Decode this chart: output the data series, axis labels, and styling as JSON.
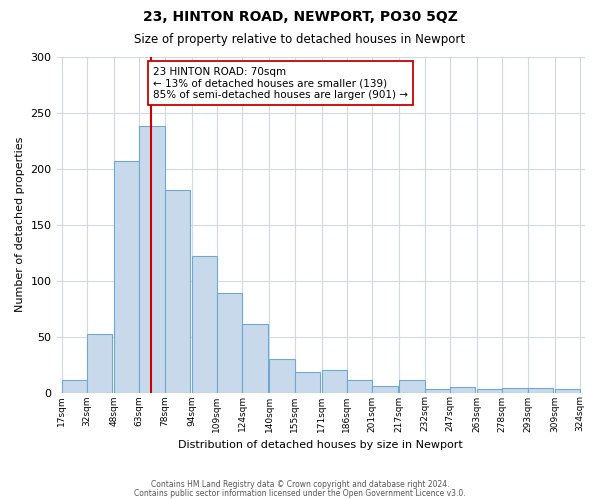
{
  "title": "23, HINTON ROAD, NEWPORT, PO30 5QZ",
  "subtitle": "Size of property relative to detached houses in Newport",
  "xlabel": "Distribution of detached houses by size in Newport",
  "ylabel": "Number of detached properties",
  "bin_labels": [
    "17sqm",
    "32sqm",
    "48sqm",
    "63sqm",
    "78sqm",
    "94sqm",
    "109sqm",
    "124sqm",
    "140sqm",
    "155sqm",
    "171sqm",
    "186sqm",
    "201sqm",
    "217sqm",
    "232sqm",
    "247sqm",
    "263sqm",
    "278sqm",
    "293sqm",
    "309sqm",
    "324sqm"
  ],
  "bar_values": [
    11,
    52,
    207,
    238,
    181,
    122,
    89,
    61,
    30,
    18,
    20,
    11,
    6,
    11,
    3,
    5,
    3,
    4,
    4,
    3
  ],
  "bar_color": "#c9d9ec",
  "bar_edge_color": "#6fa8d0",
  "bin_starts": [
    17,
    32,
    48,
    63,
    78,
    94,
    109,
    124,
    140,
    155,
    171,
    186,
    201,
    217,
    232,
    247,
    263,
    278,
    293,
    309
  ],
  "bin_width": 15,
  "vline_x": 70,
  "vline_color": "#cc0000",
  "annotation_title": "23 HINTON ROAD: 70sqm",
  "annotation_line1": "← 13% of detached houses are smaller (139)",
  "annotation_line2": "85% of semi-detached houses are larger (901) →",
  "annotation_box_color": "#ffffff",
  "annotation_box_edge": "#cc0000",
  "ylim": [
    0,
    300
  ],
  "yticks": [
    0,
    50,
    100,
    150,
    200,
    250,
    300
  ],
  "background_color": "#ffffff",
  "grid_color": "#d0d8e8",
  "footer_line1": "Contains HM Land Registry data © Crown copyright and database right 2024.",
  "footer_line2": "Contains public sector information licensed under the Open Government Licence v3.0."
}
